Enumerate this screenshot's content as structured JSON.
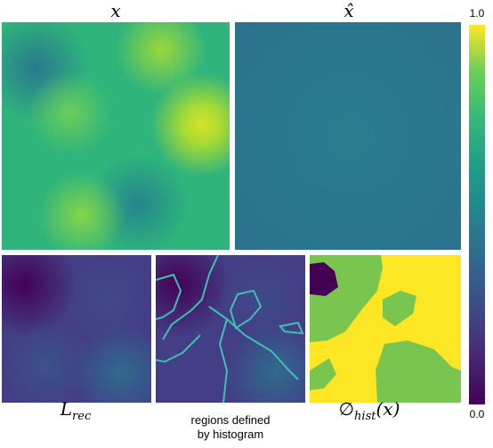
{
  "figure": {
    "input_label": "x",
    "reconstruction_label": "x̂",
    "loss_label": {
      "symbol": "L",
      "subscript": "rec"
    },
    "regions_label": [
      "regions defined",
      "by histogram"
    ],
    "hist_label": {
      "symbol": "∅",
      "subscript": "hist",
      "argument": "(x)"
    }
  },
  "colorbar": {
    "min": {
      "value": 0,
      "label": "0.0"
    },
    "max": {
      "value": 1,
      "label": "1.0"
    }
  }
}
